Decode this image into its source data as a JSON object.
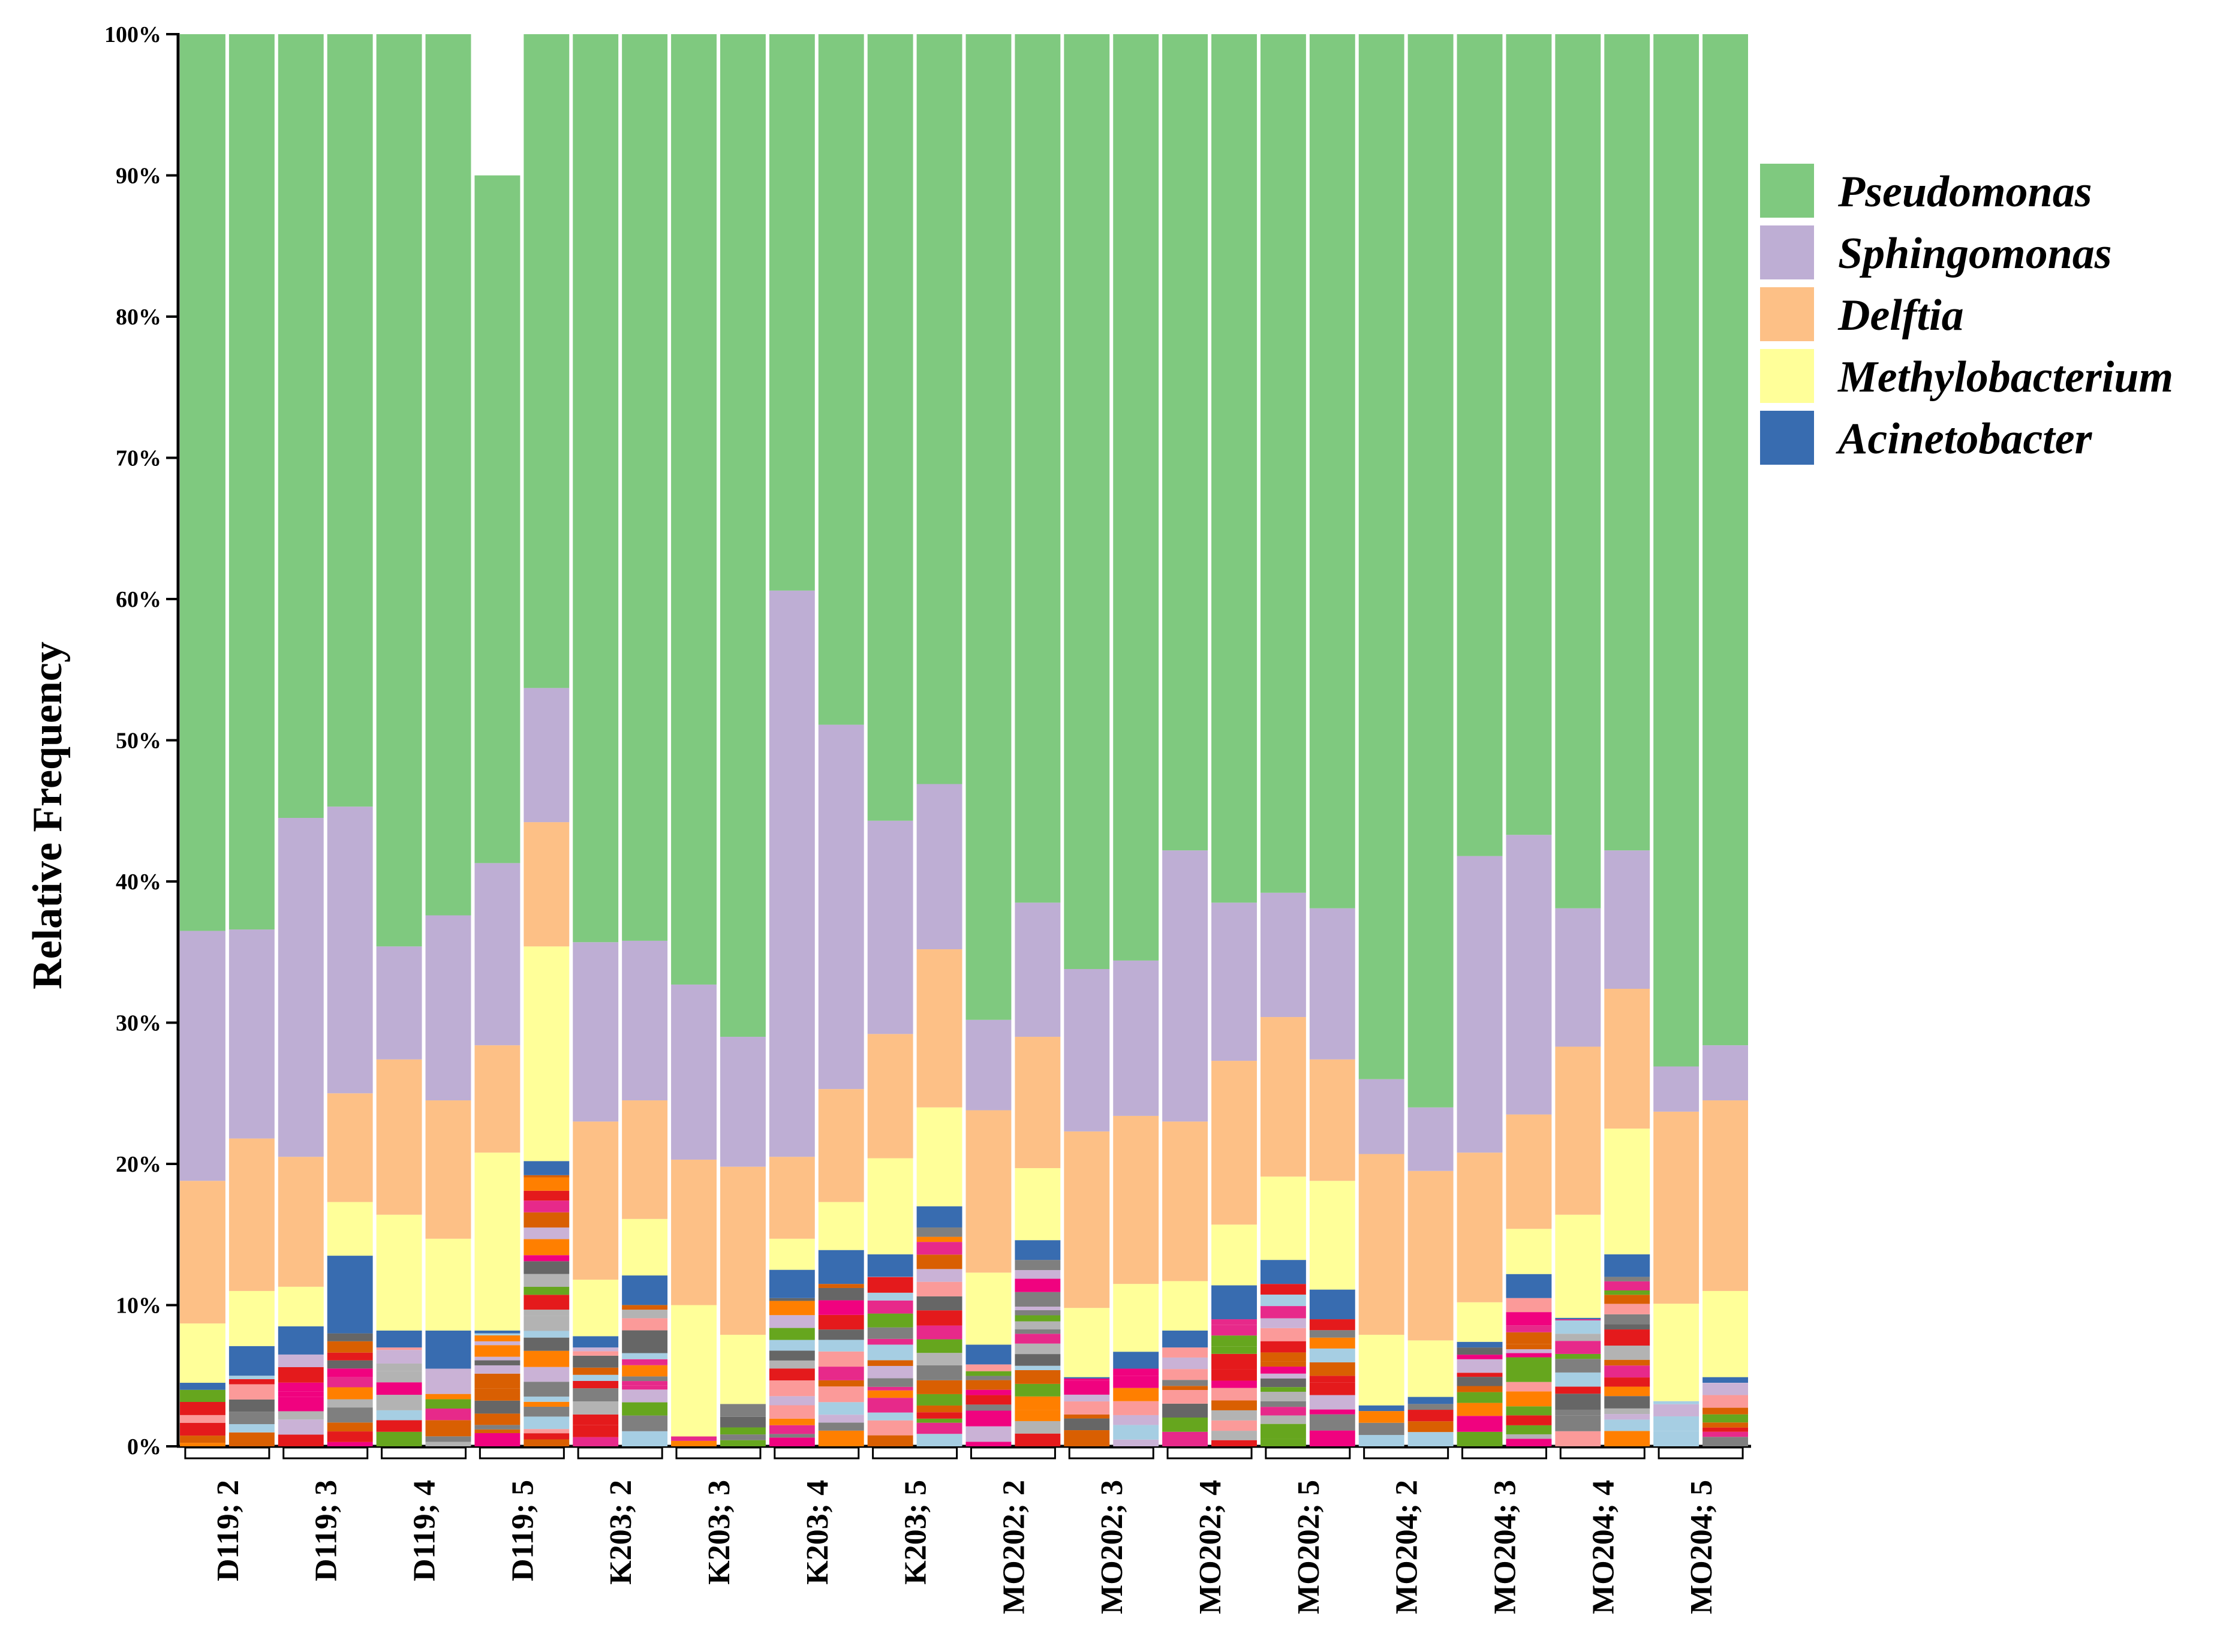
{
  "chart_data": {
    "type": "bar",
    "stacked": true,
    "title": "",
    "xlabel": "",
    "ylabel": "Relative Frequency",
    "ylim": [
      0,
      100
    ],
    "y_ticks": [
      "0%",
      "10%",
      "20%",
      "30%",
      "40%",
      "50%",
      "60%",
      "70%",
      "80%",
      "90%",
      "100%"
    ],
    "grid": false,
    "legend_position": "top-right",
    "groups": [
      "D119; 2",
      "D119; 3",
      "D119; 4",
      "D119; 5",
      "K203; 2",
      "K203; 3",
      "K203; 4",
      "K203; 5",
      "MO202; 2",
      "MO202; 3",
      "MO202; 4",
      "MO202; 5",
      "MO204; 2",
      "MO204; 3",
      "MO204; 4",
      "MO204; 5"
    ],
    "bars_per_group": 2,
    "legend": [
      {
        "name": "Pseudomonas",
        "color": "#7fc97f"
      },
      {
        "name": "Sphingomonas",
        "color": "#beaed4"
      },
      {
        "name": "Delftia",
        "color": "#fdc086"
      },
      {
        "name": "Methylobacterium",
        "color": "#ffff99"
      },
      {
        "name": "Acinetobacter",
        "color": "#386cb0"
      }
    ],
    "other_colors": [
      "#7f7f7f",
      "#e7298a",
      "#d95f02",
      "#f0027f",
      "#b3b3b3",
      "#666666",
      "#e41a1c",
      "#66a61e",
      "#a6cee3",
      "#fb9a99",
      "#cab2d6",
      "#ff7f00"
    ],
    "series_order": [
      "Other",
      "Acinetobacter",
      "Methylobacterium",
      "Delftia",
      "Sphingomonas",
      "Pseudomonas"
    ],
    "bars": [
      {
        "group": "D119; 2",
        "values": {
          "Other": 4.0,
          "Acinetobacter": 0.5,
          "Methylobacterium": 4.2,
          "Delftia": 10.1,
          "Sphingomonas": 17.7,
          "Pseudomonas": 63.5
        }
      },
      {
        "group": "D119; 2",
        "values": {
          "Other": 5.0,
          "Acinetobacter": 2.1,
          "Methylobacterium": 3.9,
          "Delftia": 10.8,
          "Sphingomonas": 14.8,
          "Pseudomonas": 63.4
        }
      },
      {
        "group": "D119; 3",
        "values": {
          "Other": 6.5,
          "Acinetobacter": 2.0,
          "Methylobacterium": 2.8,
          "Delftia": 9.2,
          "Sphingomonas": 24.0,
          "Pseudomonas": 55.5
        }
      },
      {
        "group": "D119; 3",
        "values": {
          "Other": 8.0,
          "Acinetobacter": 5.5,
          "Methylobacterium": 3.8,
          "Delftia": 7.7,
          "Sphingomonas": 20.3,
          "Pseudomonas": 54.7
        }
      },
      {
        "group": "D119; 4",
        "values": {
          "Other": 7.0,
          "Acinetobacter": 1.2,
          "Methylobacterium": 8.2,
          "Delftia": 11.0,
          "Sphingomonas": 8.0,
          "Pseudomonas": 64.6
        }
      },
      {
        "group": "D119; 4",
        "values": {
          "Other": 5.5,
          "Acinetobacter": 2.7,
          "Methylobacterium": 6.5,
          "Delftia": 9.8,
          "Sphingomonas": 13.1,
          "Pseudomonas": 62.4
        }
      },
      {
        "group": "D119; 5",
        "values": {
          "Other": 8.0,
          "Acinetobacter": 0.2,
          "Methylobacterium": 12.6,
          "Delftia": 7.6,
          "Sphingomonas": 12.9,
          "Pseudomonas": 48.7
        }
      },
      {
        "group": "D119; 5",
        "values": {
          "Other": 19.2,
          "Acinetobacter": 1.0,
          "Methylobacterium": 15.2,
          "Delftia": 8.8,
          "Sphingomonas": 9.5,
          "Pseudomonas": 46.3
        }
      },
      {
        "group": "K203; 2",
        "values": {
          "Other": 7.0,
          "Acinetobacter": 0.8,
          "Methylobacterium": 4.0,
          "Delftia": 11.2,
          "Sphingomonas": 12.7,
          "Pseudomonas": 64.3
        }
      },
      {
        "group": "K203; 2",
        "values": {
          "Other": 10.0,
          "Acinetobacter": 2.1,
          "Methylobacterium": 4.0,
          "Delftia": 8.4,
          "Sphingomonas": 11.3,
          "Pseudomonas": 64.2
        }
      },
      {
        "group": "K203; 3",
        "values": {
          "Other": 0.7,
          "Acinetobacter": 0.0,
          "Methylobacterium": 9.3,
          "Delftia": 10.3,
          "Sphingomonas": 12.4,
          "Pseudomonas": 67.3
        }
      },
      {
        "group": "K203; 3",
        "values": {
          "Other": 3.0,
          "Acinetobacter": 0.0,
          "Methylobacterium": 4.9,
          "Delftia": 11.9,
          "Sphingomonas": 9.2,
          "Pseudomonas": 71.0
        }
      },
      {
        "group": "K203; 4",
        "values": {
          "Other": 10.5,
          "Acinetobacter": 2.0,
          "Methylobacterium": 2.2,
          "Delftia": 5.8,
          "Sphingomonas": 40.1,
          "Pseudomonas": 39.4
        }
      },
      {
        "group": "K203; 4",
        "values": {
          "Other": 11.5,
          "Acinetobacter": 2.4,
          "Methylobacterium": 3.4,
          "Delftia": 8.0,
          "Sphingomonas": 25.8,
          "Pseudomonas": 48.9
        }
      },
      {
        "group": "K203; 5",
        "values": {
          "Other": 12.0,
          "Acinetobacter": 1.6,
          "Methylobacterium": 6.8,
          "Delftia": 8.8,
          "Sphingomonas": 15.1,
          "Pseudomonas": 55.7
        }
      },
      {
        "group": "K203; 5",
        "values": {
          "Other": 15.5,
          "Acinetobacter": 1.5,
          "Methylobacterium": 7.0,
          "Delftia": 11.2,
          "Sphingomonas": 11.7,
          "Pseudomonas": 53.1
        }
      },
      {
        "group": "MO202; 2",
        "values": {
          "Other": 5.8,
          "Acinetobacter": 1.4,
          "Methylobacterium": 5.1,
          "Delftia": 11.5,
          "Sphingomonas": 6.4,
          "Pseudomonas": 69.8
        }
      },
      {
        "group": "MO202; 2",
        "values": {
          "Other": 13.2,
          "Acinetobacter": 1.4,
          "Methylobacterium": 5.1,
          "Delftia": 9.3,
          "Sphingomonas": 9.5,
          "Pseudomonas": 61.5
        }
      },
      {
        "group": "MO202; 3",
        "values": {
          "Other": 4.8,
          "Acinetobacter": 0.1,
          "Methylobacterium": 4.9,
          "Delftia": 12.5,
          "Sphingomonas": 11.5,
          "Pseudomonas": 66.2
        }
      },
      {
        "group": "MO202; 3",
        "values": {
          "Other": 5.5,
          "Acinetobacter": 1.2,
          "Methylobacterium": 4.8,
          "Delftia": 11.9,
          "Sphingomonas": 11.0,
          "Pseudomonas": 65.6
        }
      },
      {
        "group": "MO202; 4",
        "values": {
          "Other": 7.0,
          "Acinetobacter": 1.2,
          "Methylobacterium": 3.5,
          "Delftia": 11.3,
          "Sphingomonas": 19.2,
          "Pseudomonas": 57.8
        }
      },
      {
        "group": "MO202; 4",
        "values": {
          "Other": 9.0,
          "Acinetobacter": 2.4,
          "Methylobacterium": 4.3,
          "Delftia": 11.6,
          "Sphingomonas": 11.2,
          "Pseudomonas": 61.5
        }
      },
      {
        "group": "MO202; 5",
        "values": {
          "Other": 11.5,
          "Acinetobacter": 1.7,
          "Methylobacterium": 5.9,
          "Delftia": 11.3,
          "Sphingomonas": 8.8,
          "Pseudomonas": 60.8
        }
      },
      {
        "group": "MO202; 5",
        "values": {
          "Other": 9.0,
          "Acinetobacter": 2.1,
          "Methylobacterium": 7.7,
          "Delftia": 8.6,
          "Sphingomonas": 10.7,
          "Pseudomonas": 61.9
        }
      },
      {
        "group": "MO204; 2",
        "values": {
          "Other": 2.5,
          "Acinetobacter": 0.4,
          "Methylobacterium": 5.0,
          "Delftia": 12.8,
          "Sphingomonas": 5.3,
          "Pseudomonas": 74.0
        }
      },
      {
        "group": "MO204; 2",
        "values": {
          "Other": 3.0,
          "Acinetobacter": 0.5,
          "Methylobacterium": 4.0,
          "Delftia": 12.0,
          "Sphingomonas": 4.5,
          "Pseudomonas": 76.0
        }
      },
      {
        "group": "MO204; 3",
        "values": {
          "Other": 7.0,
          "Acinetobacter": 0.4,
          "Methylobacterium": 2.8,
          "Delftia": 10.6,
          "Sphingomonas": 21.0,
          "Pseudomonas": 58.2
        }
      },
      {
        "group": "MO204; 3",
        "values": {
          "Other": 10.5,
          "Acinetobacter": 1.7,
          "Methylobacterium": 3.2,
          "Delftia": 8.1,
          "Sphingomonas": 19.8,
          "Pseudomonas": 56.7
        }
      },
      {
        "group": "MO204; 4",
        "values": {
          "Other": 9.0,
          "Acinetobacter": 0.1,
          "Methylobacterium": 7.3,
          "Delftia": 11.9,
          "Sphingomonas": 9.8,
          "Pseudomonas": 61.9
        }
      },
      {
        "group": "MO204; 4",
        "values": {
          "Other": 12.0,
          "Acinetobacter": 1.6,
          "Methylobacterium": 8.9,
          "Delftia": 9.9,
          "Sphingomonas": 9.8,
          "Pseudomonas": 57.8
        }
      },
      {
        "group": "MO204; 5",
        "values": {
          "Other": 3.2,
          "Acinetobacter": 0.0,
          "Methylobacterium": 6.9,
          "Delftia": 13.6,
          "Sphingomonas": 3.2,
          "Pseudomonas": 73.1
        }
      },
      {
        "group": "MO204; 5",
        "values": {
          "Other": 4.5,
          "Acinetobacter": 0.4,
          "Methylobacterium": 6.1,
          "Delftia": 13.5,
          "Sphingomonas": 3.9,
          "Pseudomonas": 71.6
        }
      }
    ]
  }
}
